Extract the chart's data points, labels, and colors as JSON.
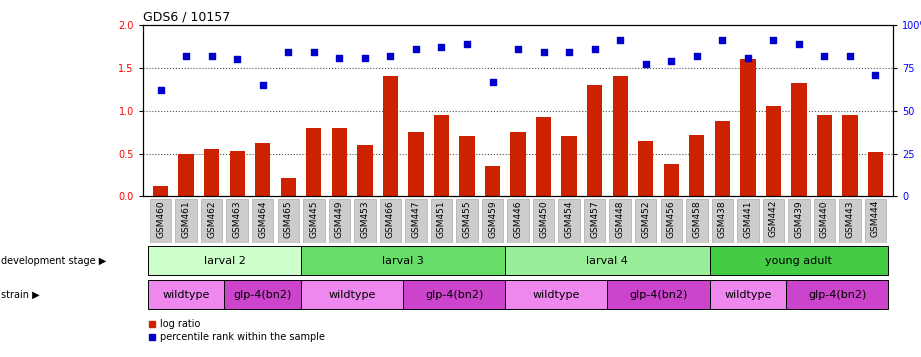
{
  "title": "GDS6 / 10157",
  "samples": [
    "GSM460",
    "GSM461",
    "GSM462",
    "GSM463",
    "GSM464",
    "GSM465",
    "GSM445",
    "GSM449",
    "GSM453",
    "GSM466",
    "GSM447",
    "GSM451",
    "GSM455",
    "GSM459",
    "GSM446",
    "GSM450",
    "GSM454",
    "GSM457",
    "GSM448",
    "GSM452",
    "GSM456",
    "GSM458",
    "GSM438",
    "GSM441",
    "GSM442",
    "GSM439",
    "GSM440",
    "GSM443",
    "GSM444"
  ],
  "log_ratio": [
    0.12,
    0.5,
    0.55,
    0.53,
    0.62,
    0.22,
    0.8,
    0.8,
    0.6,
    1.4,
    0.75,
    0.95,
    0.71,
    0.35,
    0.75,
    0.93,
    0.7,
    1.3,
    1.4,
    0.65,
    0.38,
    0.72,
    0.88,
    1.6,
    1.05,
    1.32,
    0.95,
    0.95,
    0.52
  ],
  "percentile": [
    62,
    82,
    82,
    80,
    65,
    84,
    84,
    81,
    81,
    82,
    86,
    87,
    89,
    67,
    86,
    84,
    84,
    86,
    91,
    77,
    79,
    82,
    91,
    81,
    91,
    89,
    82,
    82,
    71
  ],
  "dev_stages": [
    {
      "label": "larval 2",
      "start": 0,
      "end": 6,
      "color": "#ccffcc"
    },
    {
      "label": "larval 3",
      "start": 6,
      "end": 14,
      "color": "#66dd66"
    },
    {
      "label": "larval 4",
      "start": 14,
      "end": 22,
      "color": "#99ee99"
    },
    {
      "label": "young adult",
      "start": 22,
      "end": 29,
      "color": "#44cc44"
    }
  ],
  "strains": [
    {
      "label": "wildtype",
      "start": 0,
      "end": 3,
      "color": "#ee88ee"
    },
    {
      "label": "glp-4(bn2)",
      "start": 3,
      "end": 6,
      "color": "#cc44cc"
    },
    {
      "label": "wildtype",
      "start": 6,
      "end": 10,
      "color": "#ee88ee"
    },
    {
      "label": "glp-4(bn2)",
      "start": 10,
      "end": 14,
      "color": "#cc44cc"
    },
    {
      "label": "wildtype",
      "start": 14,
      "end": 18,
      "color": "#ee88ee"
    },
    {
      "label": "glp-4(bn2)",
      "start": 18,
      "end": 22,
      "color": "#cc44cc"
    },
    {
      "label": "wildtype",
      "start": 22,
      "end": 25,
      "color": "#ee88ee"
    },
    {
      "label": "glp-4(bn2)",
      "start": 25,
      "end": 29,
      "color": "#cc44cc"
    }
  ],
  "ylim_left": [
    0,
    2
  ],
  "ylim_right": [
    0,
    100
  ],
  "yticks_left": [
    0,
    0.5,
    1.0,
    1.5,
    2.0
  ],
  "yticks_right": [
    0,
    25,
    50,
    75,
    100
  ],
  "bar_color": "#cc2200",
  "dot_color": "#0000cc",
  "hline_color": "#555555",
  "hlines": [
    0.5,
    1.0,
    1.5
  ],
  "background_color": "#ffffff",
  "tick_box_color": "#cccccc",
  "tick_box_edge": "#999999"
}
